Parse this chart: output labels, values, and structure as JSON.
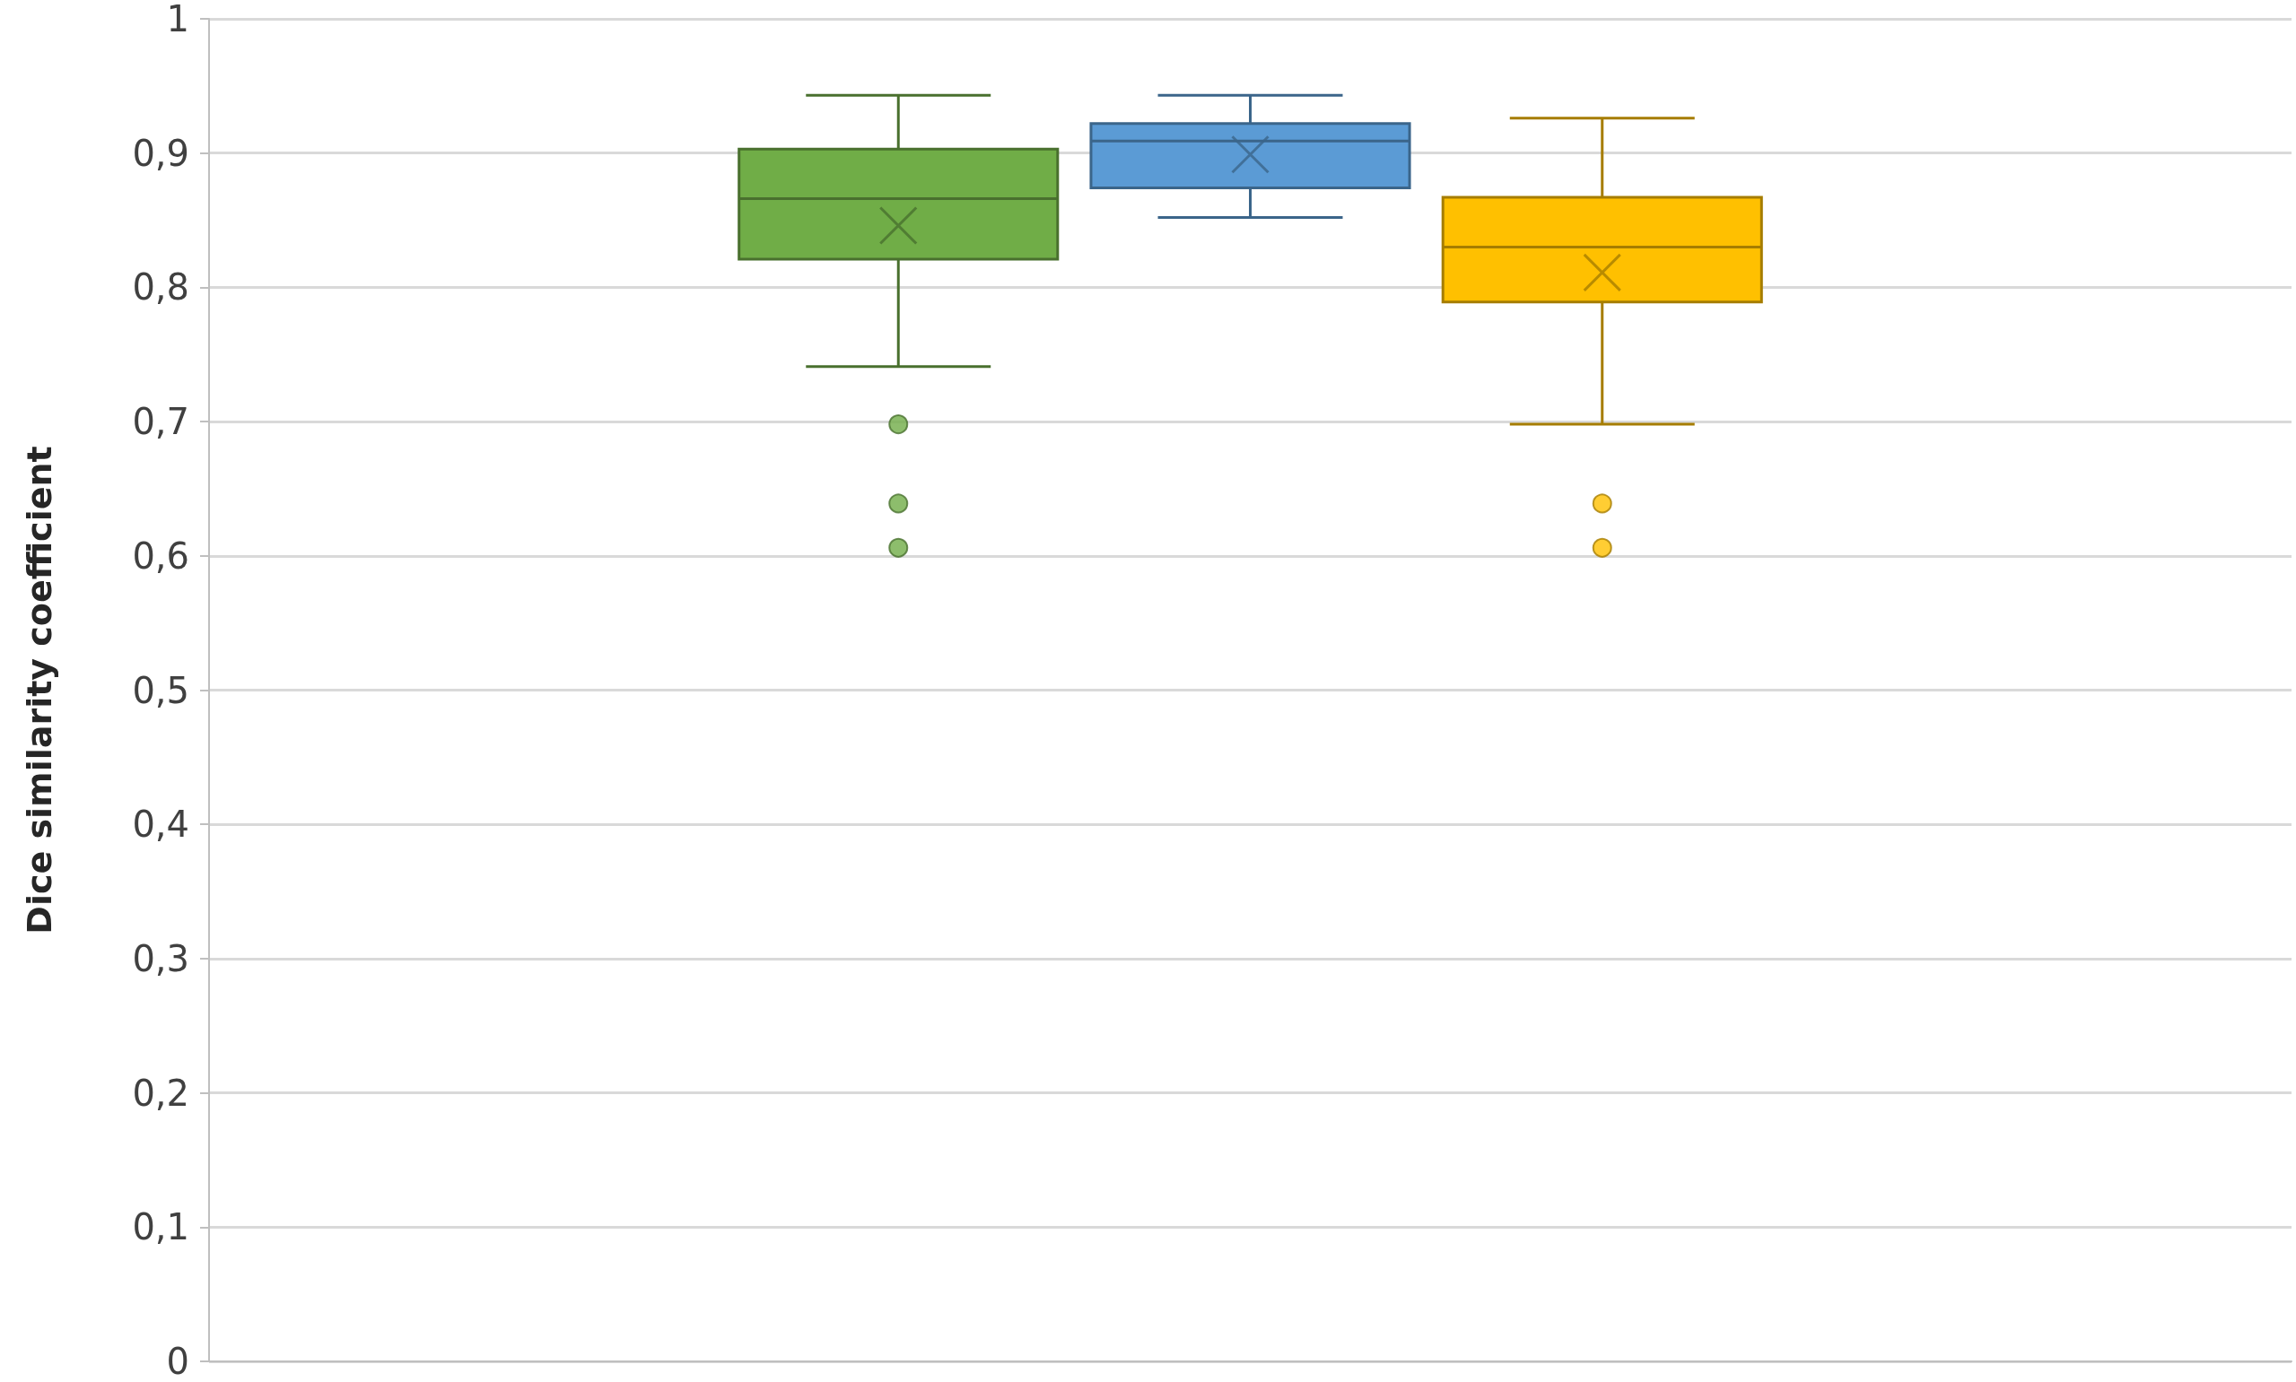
{
  "chart_data": {
    "type": "box",
    "ylabel": "Dice similarity coefficient",
    "categories": [
      null
    ],
    "series": [
      {
        "color": "#70ad47",
        "boxes": [
          {
            "low": 0.741,
            "q1": 0.821,
            "median": 0.866,
            "q3": 0.903,
            "high": 0.943,
            "mean": 0.846,
            "outliers": [
              0.698,
              0.639,
              0.606
            ]
          }
        ]
      },
      {
        "color": "#5b9bd5",
        "boxes": [
          {
            "low": 0.852,
            "q1": 0.874,
            "median": 0.909,
            "q3": 0.922,
            "high": 0.943,
            "mean": 0.899
          }
        ]
      },
      {
        "color": "#ffc000",
        "boxes": [
          {
            "low": 0.698,
            "q1": 0.789,
            "median": 0.83,
            "q3": 0.867,
            "high": 0.926,
            "mean": 0.811,
            "outliers": [
              0.639,
              0.606
            ]
          }
        ]
      }
    ],
    "ylim": [
      0,
      1
    ],
    "yticks": [
      0,
      {
        "value": 0.1,
        "label": "0,1"
      },
      {
        "value": 0.2,
        "label": "0,2"
      },
      {
        "value": 0.3,
        "label": "0,3"
      },
      {
        "value": 0.4,
        "label": "0,4"
      },
      {
        "value": 0.5,
        "label": "0,5"
      },
      {
        "value": 0.6,
        "label": "0,6"
      },
      {
        "value": 0.7,
        "label": "0,7"
      },
      {
        "value": 0.8,
        "label": "0,8"
      },
      {
        "value": 0.9,
        "label": "0,9"
      },
      1
    ],
    "grid": "y",
    "marker": "circle"
  }
}
